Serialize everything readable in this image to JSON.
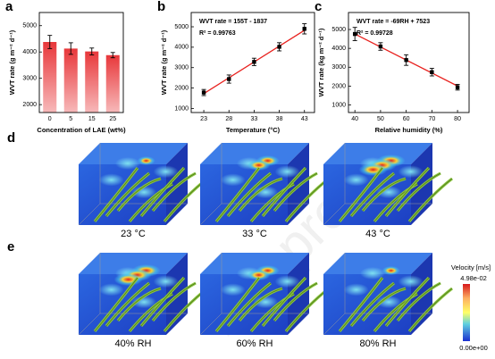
{
  "chart_data": [
    {
      "type": "bar",
      "label": "a",
      "xlabel": "Concentration of LAE (wt%)",
      "ylabel": "WVT rate (g m⁻² d⁻¹)",
      "categories": [
        "0",
        "5",
        "15",
        "25"
      ],
      "values": [
        4380,
        4130,
        4020,
        3880
      ],
      "errors": [
        250,
        220,
        130,
        100
      ],
      "color": "#e8373a",
      "ylim": [
        1700,
        5500
      ],
      "yticks": [
        2000,
        3000,
        4000,
        5000
      ]
    },
    {
      "type": "scatter",
      "label": "b",
      "xlabel": "Temperature (°C)",
      "ylabel": "WVT rate (g m⁻² d⁻¹)",
      "annotations": [
        "WVT rate = 155T - 1837",
        "R² = 0.99763"
      ],
      "x": [
        23,
        28,
        33,
        38,
        43
      ],
      "values": [
        1780,
        2440,
        3280,
        4020,
        4900
      ],
      "errors": [
        150,
        200,
        180,
        200,
        250
      ],
      "color": "#000000",
      "fit": {
        "x": [
          23,
          43
        ],
        "values": [
          1728,
          4828
        ],
        "color": "#e8211e"
      },
      "xlim": [
        20.5,
        45
      ],
      "xticks": [
        23,
        28,
        33,
        38,
        43
      ],
      "ylim": [
        800,
        5700
      ],
      "yticks": [
        1000,
        2000,
        3000,
        4000,
        5000
      ]
    },
    {
      "type": "scatter",
      "label": "c",
      "xlabel": "Relative humidity (%)",
      "ylabel": "WVT rate (kg m⁻² d⁻¹)",
      "annotations": [
        "WVT rate = -69RH + 7523",
        "R² = 0.99728"
      ],
      "x": [
        40,
        50,
        60,
        70,
        80
      ],
      "values": [
        4760,
        4100,
        3380,
        2740,
        1940
      ],
      "errors": [
        350,
        200,
        280,
        200,
        150
      ],
      "color": "#000000",
      "fit": {
        "x": [
          40,
          80
        ],
        "values": [
          4763,
          2003
        ],
        "color": "#e8211e"
      },
      "xlim": [
        37.5,
        84.5
      ],
      "xticks": [
        40,
        50,
        60,
        70,
        80
      ],
      "ylim": [
        600,
        5900
      ],
      "yticks": [
        1000,
        2000,
        3000,
        4000,
        5000
      ]
    }
  ],
  "simulations": [
    {
      "label": "d",
      "captions": [
        "23 °C",
        "33 °C",
        "43 °C"
      ]
    },
    {
      "label": "e",
      "captions": [
        "40% RH",
        "60% RH",
        "80% RH"
      ]
    }
  ],
  "colorbar": {
    "title": "Velocity [m/s]",
    "max": "4.98e-02",
    "min": "0.00e+00"
  },
  "watermark": "Pre-proofs"
}
